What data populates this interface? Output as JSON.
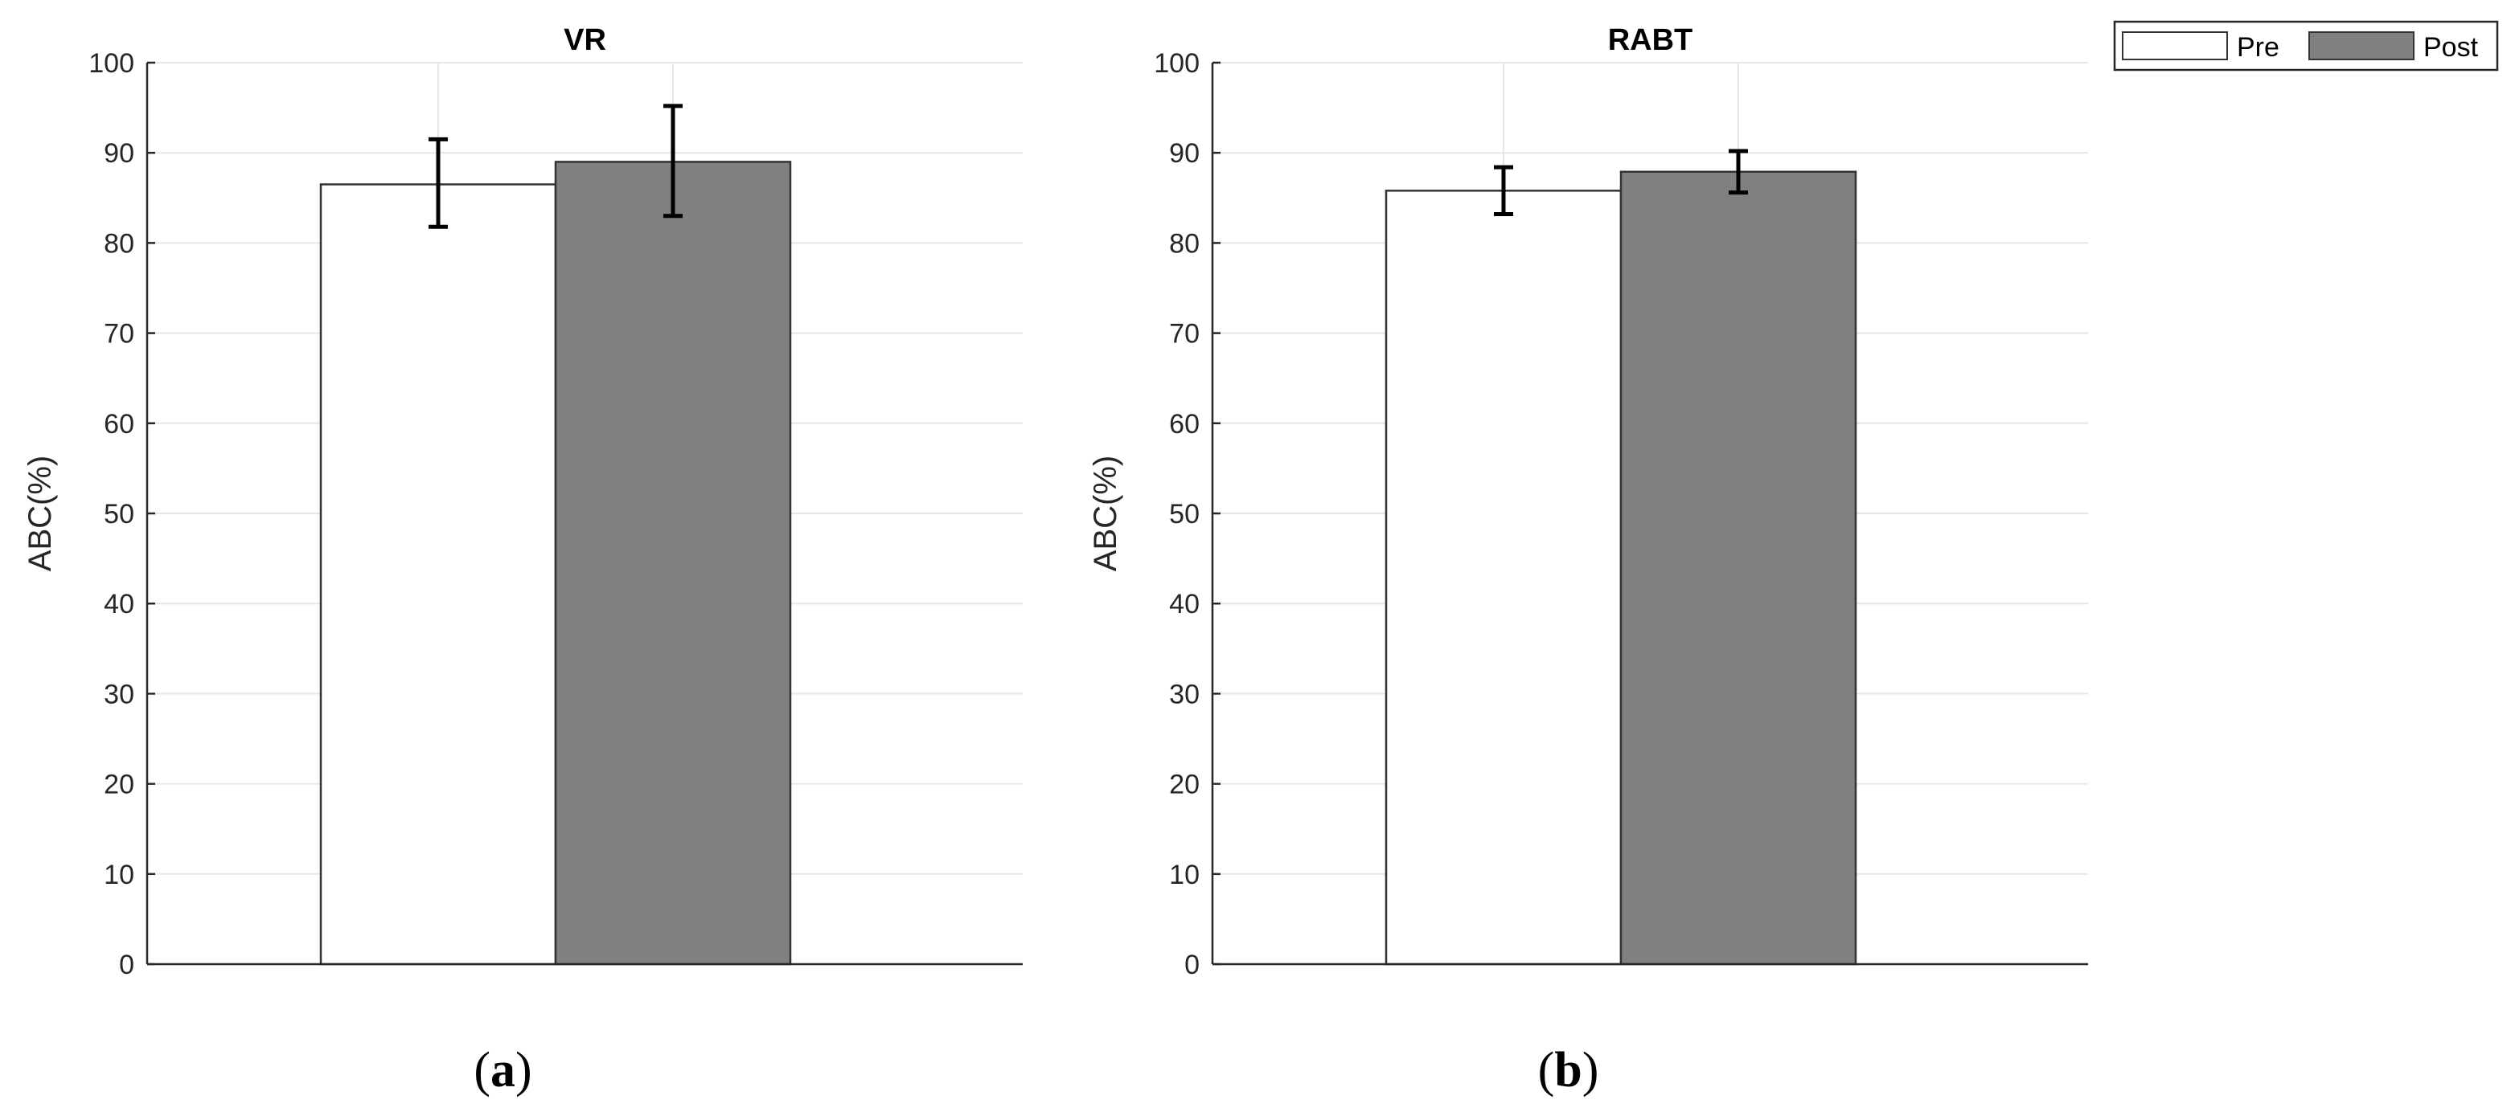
{
  "chart_data": [
    {
      "type": "bar",
      "title": "VR",
      "xlabel": "",
      "ylabel": "ABC(%)",
      "ylim": [
        0,
        100
      ],
      "yticks": [
        0,
        10,
        20,
        30,
        40,
        50,
        60,
        70,
        80,
        90,
        100
      ],
      "grid": true,
      "panel_label": {
        "open": "(",
        "letter": "a",
        "close": ")"
      },
      "series": [
        {
          "name": "Pre",
          "value": 86.5,
          "error_low": 81.8,
          "error_high": 91.5
        },
        {
          "name": "Post",
          "value": 89.0,
          "error_low": 83.0,
          "error_high": 95.2
        }
      ]
    },
    {
      "type": "bar",
      "title": "RABT",
      "xlabel": "",
      "ylabel": "ABC(%)",
      "ylim": [
        0,
        100
      ],
      "yticks": [
        0,
        10,
        20,
        30,
        40,
        50,
        60,
        70,
        80,
        90,
        100
      ],
      "grid": true,
      "panel_label": {
        "open": "(",
        "letter": "b",
        "close": ")"
      },
      "series": [
        {
          "name": "Pre",
          "value": 85.8,
          "error_low": 83.2,
          "error_high": 88.4
        },
        {
          "name": "Post",
          "value": 87.9,
          "error_low": 85.6,
          "error_high": 90.2
        }
      ]
    }
  ],
  "legend": {
    "placement": "top-right",
    "entries": [
      {
        "label": "Pre",
        "color": "#ffffff"
      },
      {
        "label": "Post",
        "color": "#808080"
      }
    ]
  },
  "colors": {
    "pre_fill": "#ffffff",
    "post_fill": "#808080",
    "bar_edge": "#333333",
    "grid": "#e6e6e6",
    "axis": "#262626",
    "error_bar": "#000000"
  }
}
